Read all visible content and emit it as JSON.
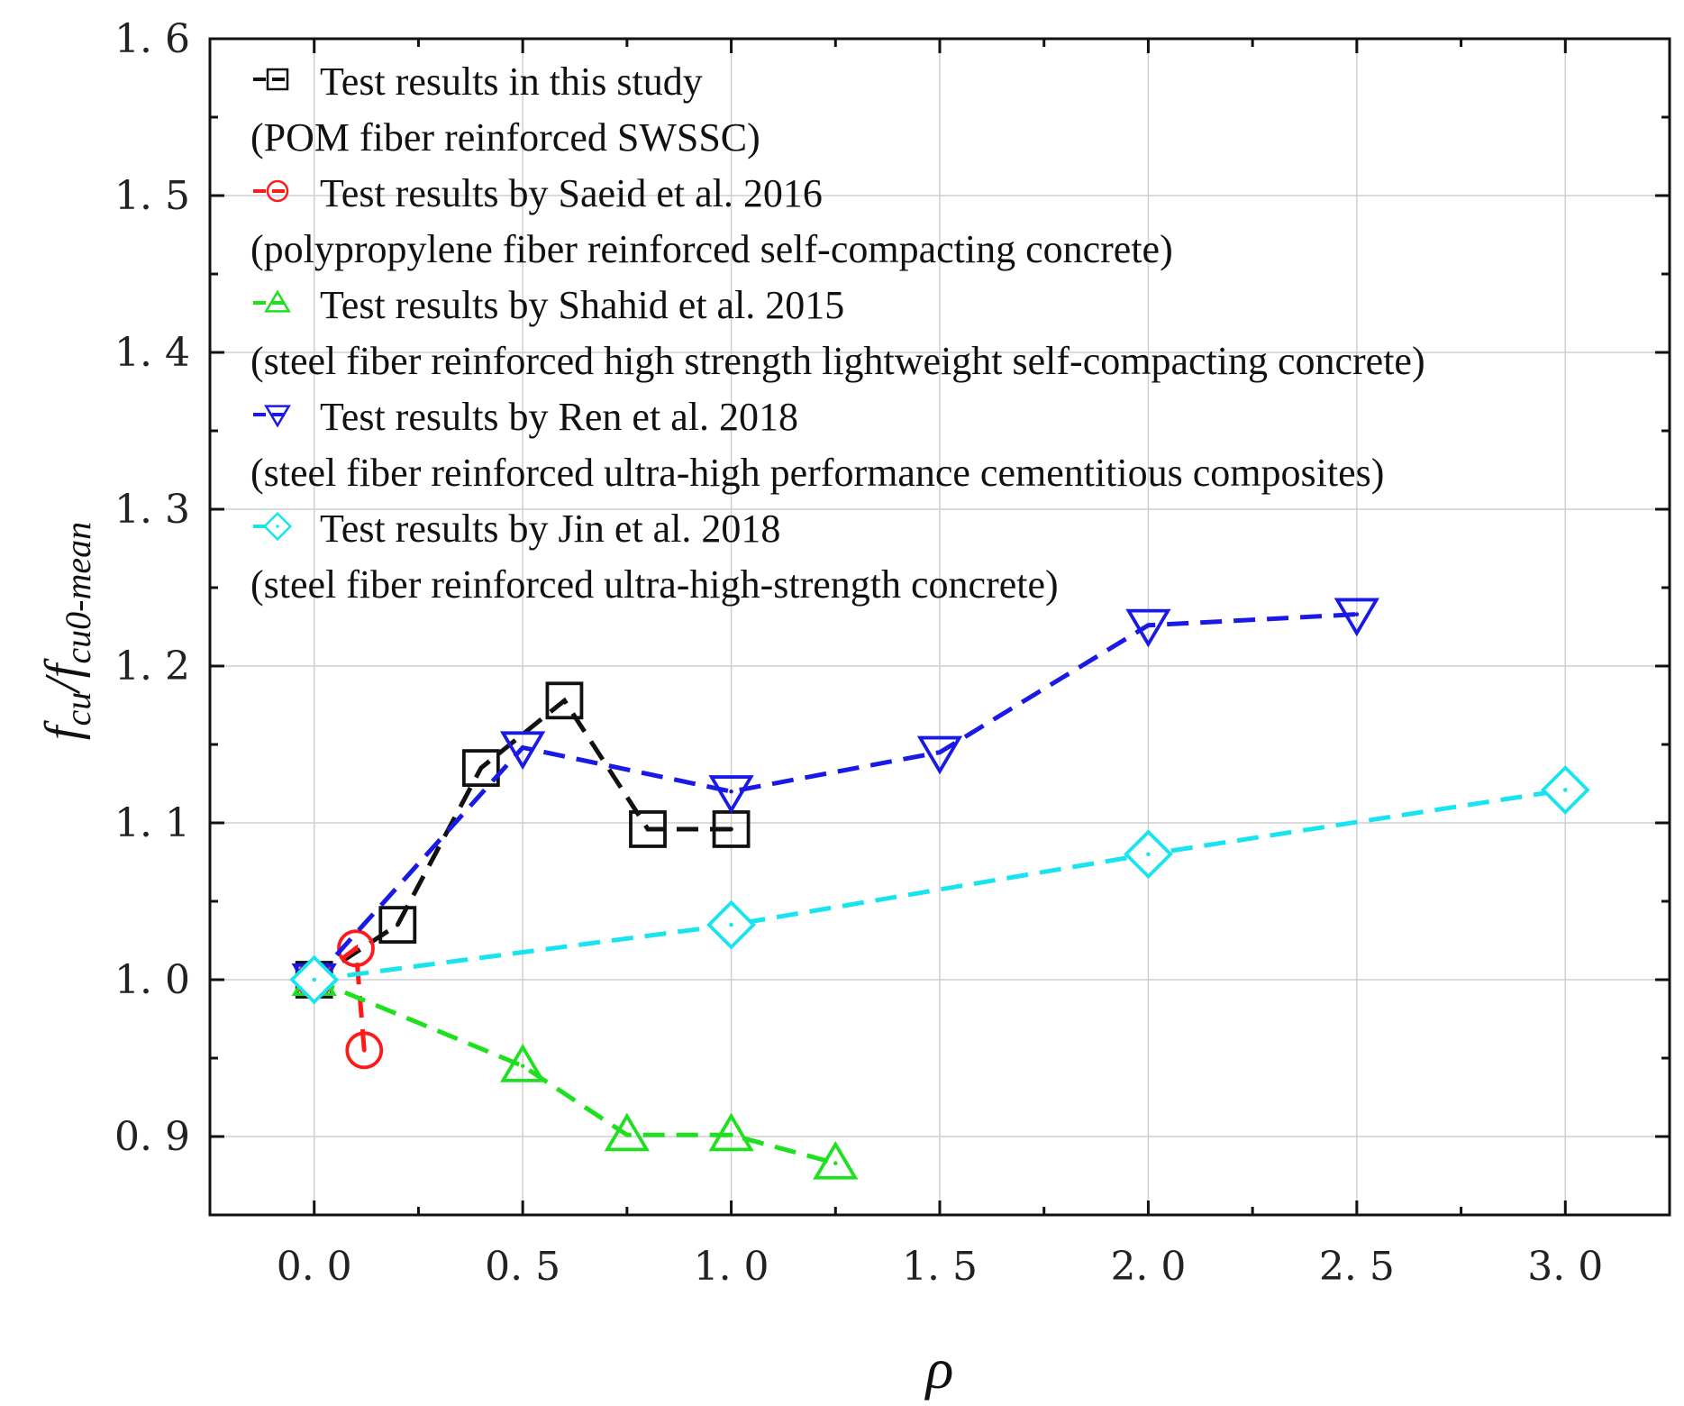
{
  "chart_data": {
    "type": "line",
    "xlabel": "ρ",
    "ylabel": {
      "main": "f",
      "sub1": "cu",
      "sep": "/",
      "main2": "f",
      "sub2": "cu0-mean"
    },
    "xlim": [
      -0.25,
      3.25
    ],
    "ylim": [
      0.85,
      1.6
    ],
    "x_ticks": [
      0.0,
      0.5,
      1.0,
      1.5,
      2.0,
      2.5,
      3.0
    ],
    "x_tick_labels": [
      "0. 0",
      "0. 5",
      "1. 0",
      "1. 5",
      "2. 0",
      "2. 5",
      "3. 0"
    ],
    "y_ticks": [
      0.9,
      1.0,
      1.1,
      1.2,
      1.3,
      1.4,
      1.5,
      1.6
    ],
    "y_tick_labels": [
      "0. 9",
      "1. 0",
      "1. 1",
      "1. 2",
      "1. 3",
      "1. 4",
      "1. 5",
      "1. 6"
    ],
    "grid": true,
    "legend_position": "top-left",
    "series": [
      {
        "name": "Test results in this study",
        "description": "(POM fiber reinforced SWSSC)",
        "color": "#111111",
        "marker": "square",
        "x": [
          0.0,
          0.2,
          0.4,
          0.6,
          0.8,
          1.0
        ],
        "y": [
          1.0,
          1.035,
          1.135,
          1.178,
          1.096,
          1.096
        ]
      },
      {
        "name": "Test results by Saeid et al.  2016",
        "description": "(polypropylene fiber reinforced self-compacting concrete)",
        "color": "#ff1a1a",
        "marker": "circle",
        "x": [
          0.0,
          0.1,
          0.12
        ],
        "y": [
          1.0,
          1.02,
          0.955
        ]
      },
      {
        "name": "Test results by Shahid et al.  2015",
        "description": "(steel fiber reinforced high strength lightweight self-compacting concrete)",
        "color": "#1ee01e",
        "marker": "triangle-up",
        "x": [
          0.0,
          0.5,
          0.75,
          1.0,
          1.25
        ],
        "y": [
          1.0,
          0.945,
          0.901,
          0.901,
          0.883
        ]
      },
      {
        "name": "Test results by Ren et al.  2018",
        "description": "(steel fiber reinforced ultra-high performance cementitious composites)",
        "color": "#1a1ae6",
        "marker": "triangle-down",
        "x": [
          0.0,
          0.5,
          1.0,
          1.5,
          2.0,
          2.5
        ],
        "y": [
          1.0,
          1.148,
          1.12,
          1.145,
          1.226,
          1.233
        ]
      },
      {
        "name": "Test results by Jin et al.  2018",
        "description": "(steel fiber reinforced ultra-high-strength concrete)",
        "color": "#18e4f0",
        "marker": "diamond",
        "x": [
          0.0,
          1.0,
          2.0,
          3.0
        ],
        "y": [
          1.0,
          1.035,
          1.08,
          1.121
        ]
      }
    ]
  }
}
